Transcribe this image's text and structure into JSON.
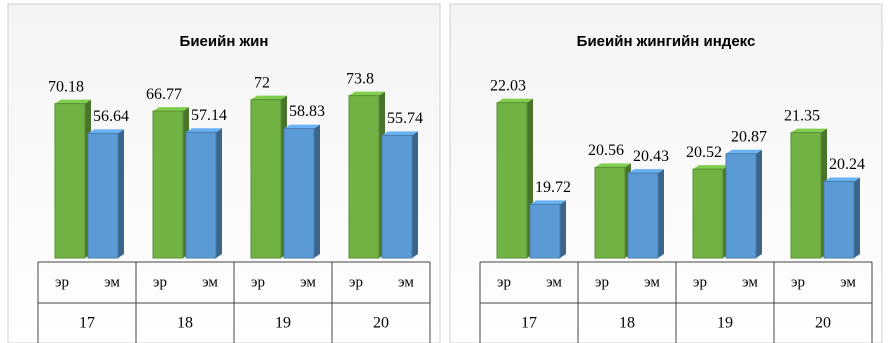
{
  "chart_data": [
    {
      "type": "bar3d",
      "title": "Биеийн жин",
      "categories": [
        "17",
        "18",
        "19",
        "20"
      ],
      "series": [
        {
          "name": "эр",
          "color": "#70b244",
          "values": [
            70.18,
            66.77,
            72,
            73.8
          ]
        },
        {
          "name": "эм",
          "color": "#5b9bd5",
          "values": [
            56.64,
            57.14,
            58.83,
            55.74
          ]
        }
      ],
      "ylim": [
        0,
        80
      ]
    },
    {
      "type": "bar3d",
      "title": "Биеийн жингийн индекс",
      "categories": [
        "17",
        "18",
        "19",
        "20"
      ],
      "series": [
        {
          "name": "эр",
          "color": "#70b244",
          "values": [
            22.03,
            20.56,
            20.52,
            21.35
          ]
        },
        {
          "name": "эм",
          "color": "#5b9bd5",
          "values": [
            19.72,
            20.43,
            20.87,
            20.24
          ]
        }
      ],
      "ylim": [
        18.5,
        22.5
      ]
    }
  ]
}
